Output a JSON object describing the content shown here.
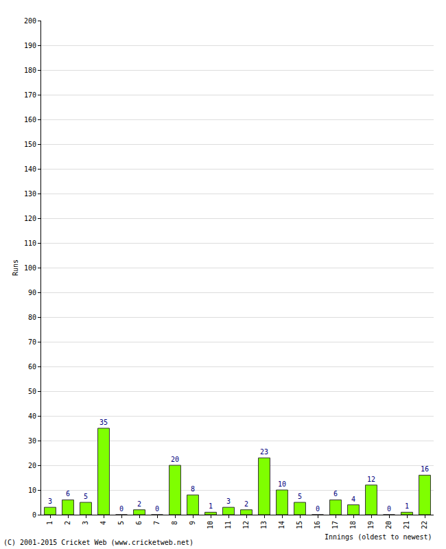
{
  "chart_data": {
    "type": "bar",
    "categories": [
      "1",
      "2",
      "3",
      "4",
      "5",
      "6",
      "7",
      "8",
      "9",
      "10",
      "11",
      "12",
      "13",
      "14",
      "15",
      "16",
      "17",
      "18",
      "19",
      "20",
      "21",
      "22"
    ],
    "values": [
      3,
      6,
      5,
      35,
      0,
      2,
      0,
      20,
      8,
      1,
      3,
      2,
      23,
      10,
      5,
      0,
      6,
      4,
      12,
      0,
      1,
      16
    ],
    "color": "#7fff00",
    "y_label": "Runs",
    "x_label": "Innings (oldest to newest)",
    "annotations": [
      "(C) 2001-2015 Cricket Web (www.cricketweb.net)"
    ],
    "ylim": [
      0,
      200
    ],
    "yticks": [
      0,
      10,
      20,
      30,
      40,
      50,
      60,
      70,
      80,
      90,
      100,
      110,
      120,
      130,
      140,
      150,
      160,
      170,
      180,
      190,
      200
    ],
    "grid": true,
    "data_labels": true
  }
}
